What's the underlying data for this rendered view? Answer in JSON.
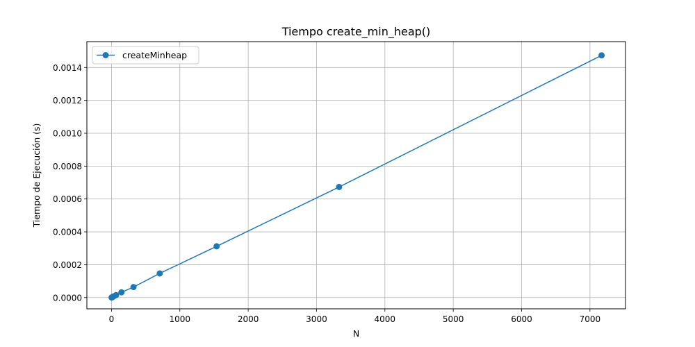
{
  "chart_data": {
    "type": "line",
    "title": "Tiempo create_min_heap()",
    "xlabel": "N",
    "ylabel": "Tiempo de Ejecución (s)",
    "xlim": [
      -360,
      7520
    ],
    "ylim": [
      -6.85e-05,
      0.0015575
    ],
    "xticks": [
      0,
      1000,
      2000,
      3000,
      4000,
      5000,
      6000,
      7000
    ],
    "xtick_labels": [
      "0",
      "1000",
      "2000",
      "3000",
      "4000",
      "5000",
      "6000",
      "7000"
    ],
    "yticks": [
      0.0,
      0.0002,
      0.0004,
      0.0006,
      0.0008,
      0.001,
      0.0012,
      0.0014
    ],
    "ytick_labels": [
      "0.0000",
      "0.0002",
      "0.0004",
      "0.0006",
      "0.0008",
      "0.0010",
      "0.0012",
      "0.0014"
    ],
    "grid": true,
    "legend_position": "upper-left",
    "series": [
      {
        "name": "createMinheap",
        "color": "#1f77b4",
        "marker": "circle",
        "x": [
          2,
          6,
          14,
          30,
          66,
          146,
          322,
          706,
          1538,
          3330,
          7170
        ],
        "y": [
          5e-07,
          1e-06,
          3e-06,
          7e-06,
          1.5e-05,
          3.2e-05,
          6.4e-05,
          0.000147,
          0.000312,
          0.000673,
          0.001474
        ]
      }
    ]
  }
}
